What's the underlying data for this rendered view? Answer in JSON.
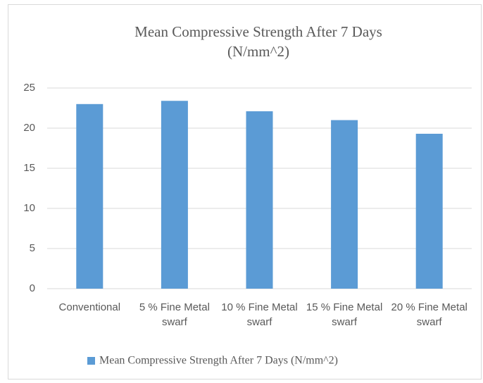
{
  "chart_data": {
    "type": "bar",
    "title": [
      "Mean Compressive Strength After 7 Days",
      "(N/mm^2)"
    ],
    "categories": [
      "Conventional",
      "5 % Fine Metal swarf",
      "10 % Fine Metal swarf",
      "15 % Fine Metal swarf",
      "20 % Fine Metal swarf"
    ],
    "series": [
      {
        "name": "Mean Compressive Strength After 7 Days (N/mm^2)",
        "color": "#5b9bd5",
        "values": [
          23,
          23.4,
          22.1,
          21,
          19.3
        ]
      }
    ],
    "ylim": [
      0,
      25
    ],
    "yticks": [
      0,
      5,
      10,
      15,
      20,
      25
    ],
    "grid": true,
    "legend": "bottom"
  }
}
